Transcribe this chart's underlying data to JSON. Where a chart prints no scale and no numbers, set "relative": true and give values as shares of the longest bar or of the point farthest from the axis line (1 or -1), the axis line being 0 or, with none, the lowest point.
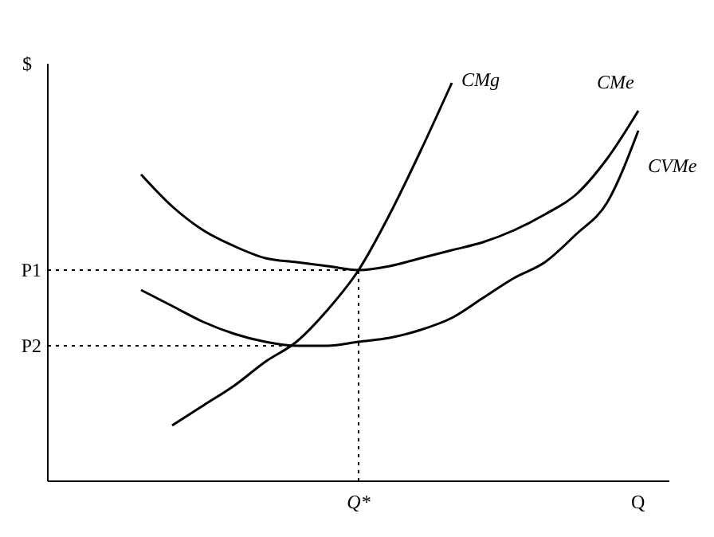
{
  "chart_data": {
    "type": "line",
    "relative": true,
    "xlabel": "Q",
    "ylabel": "$",
    "categories": [
      null,
      null,
      null,
      null,
      null,
      null,
      null,
      null,
      null,
      null,
      null,
      null,
      null,
      null,
      null,
      null,
      null,
      null,
      null,
      null,
      null
    ],
    "grid": false,
    "legend": false,
    "marker": "none",
    "line_style": "solid",
    "ref_lines": [
      {
        "axis": "y",
        "value": 0.53,
        "label": "P1",
        "line_style": "dotted"
      },
      {
        "axis": "y",
        "value": 0.34,
        "label": "P2",
        "line_style": "dotted"
      }
    ],
    "annotations": [
      "Q*"
    ],
    "series": [
      {
        "name": "CMg",
        "color": "#000000",
        "values": [
          null,
          null,
          null,
          null,
          0.14,
          0.19,
          0.24,
          0.3,
          0.35,
          0.43,
          0.53,
          0.67,
          0.83,
          1,
          null,
          null,
          null,
          null,
          null,
          null,
          null
        ]
      },
      {
        "name": "CMe",
        "color": "#000000",
        "values": [
          null,
          null,
          null,
          0.77,
          0.69,
          0.63,
          0.59,
          0.56,
          0.55,
          0.54,
          0.53,
          0.54,
          0.56,
          0.58,
          0.6,
          0.63,
          0.67,
          0.72,
          0.81,
          0.93,
          null
        ]
      },
      {
        "name": "CVMe",
        "color": "#000000",
        "values": [
          null,
          null,
          null,
          0.48,
          0.44,
          0.4,
          0.37,
          0.35,
          0.34,
          0.34,
          0.35,
          0.36,
          0.38,
          0.41,
          0.46,
          0.51,
          0.55,
          0.62,
          0.7,
          0.88,
          null
        ]
      }
    ]
  }
}
